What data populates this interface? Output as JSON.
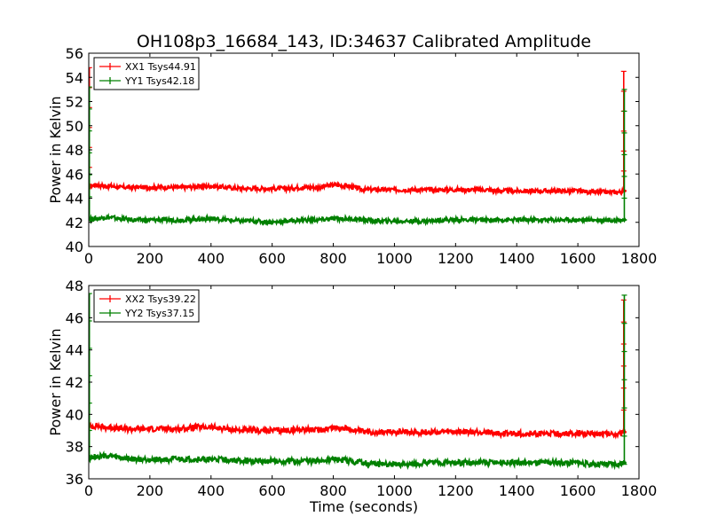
{
  "title": "OH108p3_16684_143, ID:34637 Calibrated Amplitude",
  "colors": {
    "xx": "#ff0000",
    "yy": "#008000"
  },
  "chart_data": [
    {
      "type": "line",
      "panel": "top",
      "xlabel": "",
      "ylabel": "Power in Kelvin",
      "xlim": [
        0,
        1800
      ],
      "ylim": [
        40,
        56
      ],
      "xticks": [
        "0",
        "200",
        "400",
        "600",
        "800",
        "1000",
        "1200",
        "1400",
        "1600",
        "1800"
      ],
      "yticks": [
        "40",
        "42",
        "44",
        "46",
        "48",
        "50",
        "52",
        "54",
        "56"
      ],
      "legend_position": "top-left",
      "grid": false,
      "series": [
        {
          "name": "XX1 Tsys44.91",
          "color": "#ff0000",
          "x": [
            0,
            25,
            50,
            75,
            100,
            150,
            200,
            250,
            300,
            350,
            400,
            450,
            500,
            550,
            600,
            650,
            700,
            750,
            800,
            850,
            900,
            950,
            1000,
            1050,
            1100,
            1150,
            1200,
            1250,
            1300,
            1350,
            1400,
            1450,
            1500,
            1550,
            1600,
            1650,
            1700,
            1740,
            1755
          ],
          "y": [
            45.0,
            45.1,
            45.0,
            45.0,
            44.9,
            44.9,
            44.9,
            44.9,
            44.9,
            44.95,
            45.0,
            44.9,
            44.8,
            44.8,
            44.8,
            44.8,
            44.9,
            44.9,
            45.1,
            45.0,
            44.7,
            44.7,
            44.7,
            44.7,
            44.7,
            44.7,
            44.7,
            44.7,
            44.7,
            44.6,
            44.6,
            44.6,
            44.6,
            44.6,
            44.6,
            44.5,
            44.5,
            44.5,
            44.6
          ],
          "spikes": [
            {
              "x": 2,
              "from": 44.9,
              "to": 54.8
            },
            {
              "x": 1750,
              "from": 44.6,
              "to": 54.5
            }
          ]
        },
        {
          "name": "YY1 Tsys42.18",
          "color": "#008000",
          "x": [
            0,
            25,
            50,
            75,
            100,
            150,
            200,
            250,
            300,
            350,
            400,
            450,
            500,
            550,
            600,
            650,
            700,
            750,
            800,
            850,
            900,
            950,
            1000,
            1050,
            1100,
            1150,
            1200,
            1250,
            1300,
            1350,
            1400,
            1450,
            1500,
            1550,
            1600,
            1650,
            1700,
            1740,
            1755
          ],
          "y": [
            42.3,
            42.3,
            42.4,
            42.4,
            42.3,
            42.2,
            42.2,
            42.2,
            42.2,
            42.25,
            42.3,
            42.2,
            42.1,
            42.1,
            42.0,
            42.1,
            42.2,
            42.2,
            42.3,
            42.3,
            42.2,
            42.1,
            42.1,
            42.1,
            42.1,
            42.2,
            42.2,
            42.2,
            42.2,
            42.2,
            42.2,
            42.2,
            42.2,
            42.2,
            42.2,
            42.2,
            42.2,
            42.2,
            42.2
          ],
          "spikes": [
            {
              "x": 2,
              "from": 42.3,
              "to": 53.2
            },
            {
              "x": 1752,
              "from": 42.2,
              "to": 53.0
            }
          ]
        }
      ]
    },
    {
      "type": "line",
      "panel": "bottom",
      "xlabel": "Time (seconds)",
      "ylabel": "Power in Kelvin",
      "xlim": [
        0,
        1800
      ],
      "ylim": [
        36,
        48
      ],
      "xticks": [
        "0",
        "200",
        "400",
        "600",
        "800",
        "1000",
        "1200",
        "1400",
        "1600",
        "1800"
      ],
      "yticks": [
        "36",
        "38",
        "40",
        "42",
        "44",
        "46",
        "48"
      ],
      "legend_position": "top-left",
      "grid": false,
      "series": [
        {
          "name": "XX2 Tsys39.22",
          "color": "#ff0000",
          "x": [
            0,
            25,
            50,
            75,
            100,
            150,
            200,
            250,
            300,
            350,
            400,
            450,
            500,
            550,
            600,
            650,
            700,
            750,
            800,
            850,
            900,
            950,
            1000,
            1050,
            1100,
            1150,
            1200,
            1250,
            1300,
            1350,
            1400,
            1450,
            1500,
            1550,
            1600,
            1650,
            1700,
            1740,
            1755
          ],
          "y": [
            39.2,
            39.3,
            39.2,
            39.2,
            39.1,
            39.1,
            39.1,
            39.1,
            39.1,
            39.2,
            39.2,
            39.1,
            39.0,
            39.0,
            39.0,
            39.0,
            39.1,
            39.0,
            39.2,
            39.1,
            38.9,
            38.9,
            38.9,
            38.9,
            38.9,
            38.9,
            38.9,
            38.9,
            38.9,
            38.8,
            38.8,
            38.8,
            38.8,
            38.8,
            38.8,
            38.8,
            38.8,
            38.8,
            38.9
          ],
          "spikes": [
            {
              "x": 1750,
              "from": 38.9,
              "to": 47.1
            }
          ]
        },
        {
          "name": "YY2 Tsys37.15",
          "color": "#008000",
          "x": [
            0,
            25,
            50,
            75,
            100,
            150,
            200,
            250,
            300,
            350,
            400,
            450,
            500,
            550,
            600,
            650,
            700,
            750,
            800,
            850,
            900,
            950,
            1000,
            1050,
            1100,
            1150,
            1200,
            1250,
            1300,
            1350,
            1400,
            1450,
            1500,
            1550,
            1600,
            1650,
            1700,
            1740,
            1755
          ],
          "y": [
            37.3,
            37.4,
            37.4,
            37.4,
            37.3,
            37.2,
            37.2,
            37.2,
            37.2,
            37.2,
            37.2,
            37.2,
            37.1,
            37.1,
            37.1,
            37.1,
            37.1,
            37.1,
            37.2,
            37.1,
            37.0,
            36.9,
            36.9,
            36.9,
            37.0,
            37.0,
            37.0,
            37.0,
            37.0,
            37.0,
            37.0,
            37.0,
            37.0,
            37.0,
            37.0,
            36.9,
            36.9,
            36.9,
            37.0
          ],
          "spikes": [
            {
              "x": 2,
              "from": 37.3,
              "to": 47.5
            },
            {
              "x": 1752,
              "from": 36.9,
              "to": 47.4
            }
          ]
        }
      ]
    }
  ]
}
